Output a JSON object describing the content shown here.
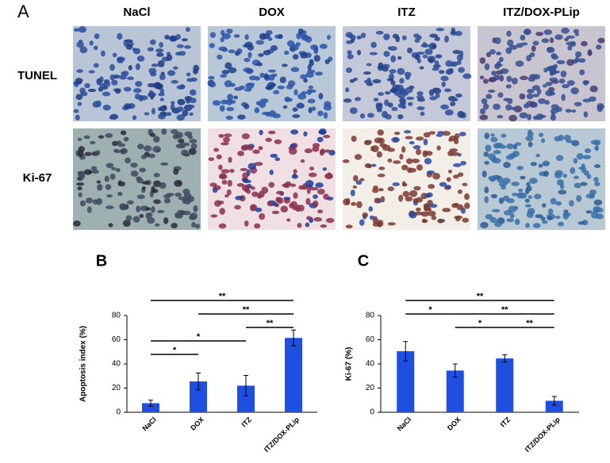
{
  "image_panel": {
    "label": "A",
    "columns": [
      "NaCl",
      "DOX",
      "ITZ",
      "ITZ/DOX-PLip"
    ],
    "rows": [
      "TUNEL",
      "Ki-67"
    ]
  },
  "chart_data": [
    {
      "type": "bar",
      "panel_label": "B",
      "ylabel": "Apoptosis index (%)",
      "categories": [
        "NaCl",
        "DOX",
        "ITZ",
        "ITZ/DOX-PLip"
      ],
      "values": [
        7.5,
        25.5,
        22,
        61.5
      ],
      "errors": [
        2.5,
        7,
        8.5,
        6.5
      ],
      "color": "#1f4fe0",
      "ylim": [
        0,
        80
      ],
      "yticks": [
        0,
        20,
        40,
        60,
        80
      ],
      "comparison_rows": [
        [
          {
            "pair": [
              0,
              3
            ],
            "label": "**"
          }
        ],
        [
          {
            "pair": [
              1,
              3
            ],
            "label": "**"
          }
        ],
        [
          {
            "pair": [
              2,
              3
            ],
            "label": "**"
          }
        ],
        [
          {
            "pair": [
              0,
              2
            ],
            "label": "*"
          }
        ],
        [
          {
            "pair": [
              0,
              1
            ],
            "label": "*"
          }
        ]
      ]
    },
    {
      "type": "bar",
      "panel_label": "C",
      "ylabel": "Ki-67 (%)",
      "categories": [
        "NaCl",
        "DOX",
        "ITZ",
        "ITZ/DOX-PLip"
      ],
      "values": [
        50.5,
        34.5,
        44.5,
        9.5
      ],
      "errors": [
        8,
        5.5,
        3,
        3.5
      ],
      "color": "#1f4fe0",
      "ylim": [
        0,
        80
      ],
      "yticks": [
        0,
        20,
        40,
        60,
        80
      ],
      "comparison_rows": [
        [
          {
            "pair": [
              0,
              3
            ],
            "label": "**"
          }
        ],
        [
          {
            "pair": [
              0,
              1
            ],
            "label": "*"
          },
          {
            "pair": [
              1,
              3
            ],
            "label": "**"
          }
        ],
        [
          {
            "pair": [
              1,
              2
            ],
            "label": "*"
          },
          {
            "pair": [
              2,
              3
            ],
            "label": "**"
          }
        ]
      ]
    }
  ]
}
